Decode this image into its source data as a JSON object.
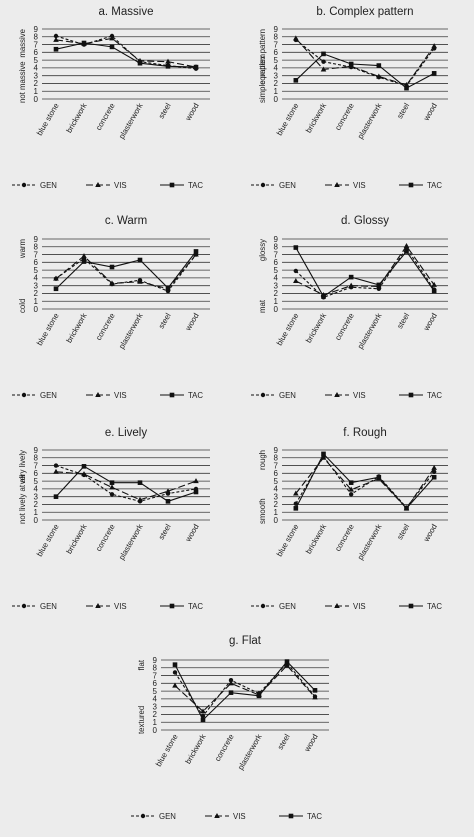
{
  "chart_data": [
    {
      "type": "line",
      "title": "a. Massive",
      "ylabel_top": "massive",
      "ylabel_bottom": "not massive",
      "categories": [
        "blue stone",
        "brickwork",
        "concrete",
        "plasterwork",
        "steel",
        "wood"
      ],
      "yticks": [
        0,
        1,
        2,
        3,
        4,
        5,
        6,
        7,
        8,
        9
      ],
      "ylim": [
        0,
        9
      ],
      "grid": true,
      "legend_position": "bottom",
      "series": [
        {
          "name": "GEN",
          "marker": "circle",
          "dash": "short",
          "values": [
            8.1,
            7.0,
            8.1,
            4.8,
            4.3,
            3.9
          ]
        },
        {
          "name": "VIS",
          "marker": "triangle",
          "dash": "long",
          "values": [
            7.6,
            7.1,
            7.8,
            4.9,
            4.8,
            4.1
          ]
        },
        {
          "name": "TAC",
          "marker": "square",
          "dash": "solid",
          "values": [
            6.4,
            7.2,
            6.7,
            4.6,
            4.2,
            4.1
          ]
        }
      ]
    },
    {
      "type": "line",
      "title": "b. Complex pattern",
      "ylabel_top": "complex pattern",
      "ylabel_bottom": "simple pattern",
      "categories": [
        "blue stone",
        "brickwork",
        "concrete",
        "plasterwork",
        "steel",
        "wood"
      ],
      "yticks": [
        0,
        1,
        2,
        3,
        4,
        5,
        6,
        7,
        8,
        9
      ],
      "ylim": [
        0,
        9
      ],
      "grid": true,
      "legend_position": "bottom",
      "series": [
        {
          "name": "GEN",
          "marker": "circle",
          "dash": "short",
          "values": [
            7.6,
            4.8,
            4.1,
            2.8,
            1.7,
            6.5
          ]
        },
        {
          "name": "VIS",
          "marker": "triangle",
          "dash": "long",
          "values": [
            7.8,
            3.8,
            4.2,
            2.9,
            1.8,
            6.8
          ]
        },
        {
          "name": "TAC",
          "marker": "square",
          "dash": "solid",
          "values": [
            2.4,
            5.8,
            4.5,
            4.3,
            1.4,
            3.3
          ]
        }
      ]
    },
    {
      "type": "line",
      "title": "c. Warm",
      "ylabel_top": "warm",
      "ylabel_bottom": "cold",
      "categories": [
        "blue stone",
        "brickwork",
        "concrete",
        "plasterwork",
        "steel",
        "wood"
      ],
      "yticks": [
        0,
        1,
        2,
        3,
        4,
        5,
        6,
        7,
        8,
        9
      ],
      "ylim": [
        0,
        9
      ],
      "grid": true,
      "legend_position": "bottom",
      "series": [
        {
          "name": "GEN",
          "marker": "circle",
          "dash": "short",
          "values": [
            3.9,
            6.5,
            3.2,
            3.7,
            2.3,
            7.0
          ]
        },
        {
          "name": "VIS",
          "marker": "triangle",
          "dash": "long",
          "values": [
            3.9,
            6.8,
            3.3,
            3.5,
            2.6,
            7.0
          ]
        },
        {
          "name": "TAC",
          "marker": "square",
          "dash": "solid",
          "values": [
            2.6,
            6.1,
            5.4,
            6.3,
            2.7,
            7.4
          ]
        }
      ]
    },
    {
      "type": "line",
      "title": "d. Glossy",
      "ylabel_top": "glossy",
      "ylabel_bottom": "mat",
      "categories": [
        "blue stone",
        "brickwork",
        "concrete",
        "plasterwork",
        "steel",
        "wood"
      ],
      "yticks": [
        0,
        1,
        2,
        3,
        4,
        5,
        6,
        7,
        8,
        9
      ],
      "ylim": [
        0,
        9
      ],
      "grid": true,
      "legend_position": "bottom",
      "series": [
        {
          "name": "GEN",
          "marker": "circle",
          "dash": "short",
          "values": [
            4.9,
            1.5,
            2.8,
            2.6,
            7.8,
            2.5
          ]
        },
        {
          "name": "VIS",
          "marker": "triangle",
          "dash": "long",
          "values": [
            3.6,
            1.8,
            3.0,
            2.9,
            8.1,
            3.1
          ]
        },
        {
          "name": "TAC",
          "marker": "square",
          "dash": "solid",
          "values": [
            7.9,
            1.6,
            4.1,
            3.1,
            7.4,
            2.3
          ]
        }
      ]
    },
    {
      "type": "line",
      "title": "e. Lively",
      "ylabel_top": "very lively",
      "ylabel_bottom": "not lively at all",
      "categories": [
        "blue stone",
        "brickwork",
        "concrete",
        "plasterwork",
        "steel",
        "wood"
      ],
      "yticks": [
        0,
        1,
        2,
        3,
        4,
        5,
        6,
        7,
        8,
        9
      ],
      "ylim": [
        0,
        9
      ],
      "grid": true,
      "legend_position": "bottom",
      "series": [
        {
          "name": "GEN",
          "marker": "circle",
          "dash": "short",
          "values": [
            7.0,
            5.8,
            3.3,
            2.4,
            3.4,
            4.0
          ]
        },
        {
          "name": "VIS",
          "marker": "triangle",
          "dash": "long",
          "values": [
            6.2,
            5.9,
            4.2,
            2.6,
            3.7,
            5.0
          ]
        },
        {
          "name": "TAC",
          "marker": "square",
          "dash": "solid",
          "values": [
            3.0,
            6.9,
            4.8,
            4.8,
            2.4,
            3.6
          ]
        }
      ]
    },
    {
      "type": "line",
      "title": "f. Rough",
      "ylabel_top": "rough",
      "ylabel_bottom": "smooth",
      "categories": [
        "blue stone",
        "brickwork",
        "concrete",
        "plasterwork",
        "steel",
        "wood"
      ],
      "yticks": [
        0,
        1,
        2,
        3,
        4,
        5,
        6,
        7,
        8,
        9
      ],
      "ylim": [
        0,
        9
      ],
      "grid": true,
      "legend_position": "bottom",
      "series": [
        {
          "name": "GEN",
          "marker": "circle",
          "dash": "short",
          "values": [
            2.1,
            8.2,
            3.3,
            5.6,
            1.6,
            6.2
          ]
        },
        {
          "name": "VIS",
          "marker": "triangle",
          "dash": "long",
          "values": [
            3.4,
            8.0,
            3.9,
            5.3,
            1.5,
            6.7
          ]
        },
        {
          "name": "TAC",
          "marker": "square",
          "dash": "solid",
          "values": [
            1.5,
            8.5,
            4.8,
            5.5,
            1.5,
            5.5
          ]
        }
      ]
    },
    {
      "type": "line",
      "title": "g. Flat",
      "ylabel_top": "flat",
      "ylabel_bottom": "textured",
      "categories": [
        "blue stone",
        "brickwork",
        "concrete",
        "plasterwork",
        "steel",
        "wood"
      ],
      "yticks": [
        0,
        1,
        2,
        3,
        4,
        5,
        6,
        7,
        8,
        9
      ],
      "ylim": [
        0,
        9
      ],
      "grid": true,
      "legend_position": "bottom",
      "series": [
        {
          "name": "GEN",
          "marker": "circle",
          "dash": "short",
          "values": [
            7.4,
            1.8,
            6.4,
            4.7,
            8.6,
            4.3
          ]
        },
        {
          "name": "VIS",
          "marker": "triangle",
          "dash": "long",
          "values": [
            5.7,
            2.4,
            6.0,
            4.5,
            8.3,
            4.2
          ]
        },
        {
          "name": "TAC",
          "marker": "square",
          "dash": "solid",
          "values": [
            8.4,
            1.3,
            4.8,
            4.4,
            8.8,
            5.1
          ]
        }
      ]
    }
  ]
}
